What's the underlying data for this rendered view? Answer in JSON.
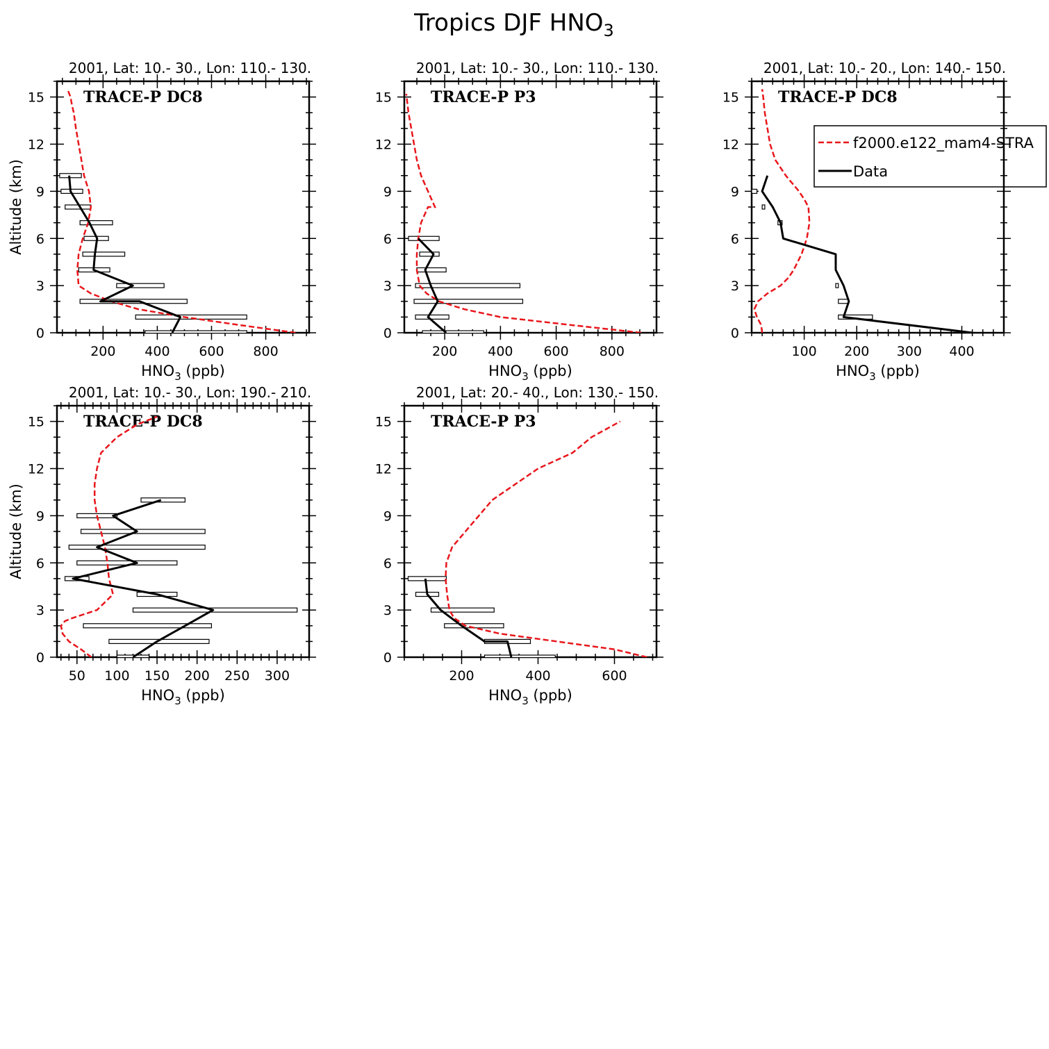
{
  "page": {
    "title": "Tropics DJF HNO",
    "title_sub": "3"
  },
  "legend": {
    "model_label": "f2000.e122_mam4-STRA",
    "data_label": "Data",
    "model_color": "#e8161b",
    "data_color": "#000000"
  },
  "chart_data": [
    {
      "type": "line",
      "subtitle": "2001, Lat: 10.- 30., Lon: 110.- 130.",
      "label": "TRACE-P DC8",
      "xlabel_main": "HNO",
      "xlabel_sub": "3",
      "xlabel_unit": " (ppb)",
      "ylabel": "Altitude (km)",
      "xlim": [
        30,
        960
      ],
      "ylim": [
        0,
        16
      ],
      "xticks": [
        200,
        400,
        600,
        800
      ],
      "xminor": 50,
      "yticks": [
        0,
        3,
        6,
        9,
        12,
        15
      ],
      "model": {
        "x": [
          910,
          700,
          500,
          330,
          230,
          155,
          110,
          105,
          110,
          125,
          145,
          155,
          148,
          130,
          120,
          110,
          100,
          92,
          85,
          80,
          73,
          70
        ],
        "y": [
          0,
          0.5,
          1,
          1.5,
          2,
          2.5,
          3,
          4,
          5,
          6,
          7,
          8,
          9,
          10,
          11,
          12,
          13,
          14,
          14.5,
          15,
          15.3,
          15.5
        ]
      },
      "data": {
        "x": [
          455,
          485,
          335,
          190,
          310,
          165,
          170,
          178,
          150,
          115,
          80,
          75
        ],
        "y": [
          0,
          1,
          2,
          2,
          3,
          4,
          5,
          6,
          7,
          8,
          9,
          10
        ]
      },
      "ranges": [
        {
          "y": 0,
          "lo": 355,
          "hi": 730
        },
        {
          "y": 1,
          "lo": 320,
          "hi": 730
        },
        {
          "y": 2,
          "lo": 115,
          "hi": 510
        },
        {
          "y": 3,
          "lo": 250,
          "hi": 425
        },
        {
          "y": 4,
          "lo": 110,
          "hi": 225
        },
        {
          "y": 5,
          "lo": 125,
          "hi": 280
        },
        {
          "y": 6,
          "lo": 130,
          "hi": 220
        },
        {
          "y": 7,
          "lo": 115,
          "hi": 235
        },
        {
          "y": 8,
          "lo": 60,
          "hi": 155
        },
        {
          "y": 9,
          "lo": 45,
          "hi": 125
        },
        {
          "y": 10,
          "lo": 40,
          "hi": 120
        }
      ]
    },
    {
      "type": "line",
      "subtitle": "2001, Lat: 10.- 30., Lon: 110.- 130.",
      "label": "TRACE-P P3",
      "xlabel_main": "HNO",
      "xlabel_sub": "3",
      "xlabel_unit": " (ppb)",
      "ylabel": "",
      "xlim": [
        55,
        960
      ],
      "ylim": [
        0,
        16
      ],
      "xticks": [
        200,
        400,
        600,
        800
      ],
      "xminor": 50,
      "yticks": [
        0,
        3,
        6,
        9,
        12,
        15
      ],
      "model": {
        "x": [
          905,
          650,
          400,
          270,
          180,
          135,
          110,
          100,
          100,
          105,
          115,
          140,
          165,
          140,
          115,
          100,
          90,
          80,
          70,
          62
        ],
        "y": [
          0,
          0.5,
          1,
          1.5,
          2,
          2.5,
          3,
          4,
          5,
          6,
          7,
          8,
          8,
          9,
          10,
          11,
          12,
          13,
          14,
          15.2
        ]
      },
      "data": {
        "x": [
          205,
          140,
          175,
          150,
          130,
          160,
          105
        ],
        "y": [
          0,
          1,
          2,
          3,
          4,
          5,
          6
        ]
      },
      "ranges": [
        {
          "y": 0,
          "lo": 120,
          "hi": 340
        },
        {
          "y": 1,
          "lo": 95,
          "hi": 215
        },
        {
          "y": 2,
          "lo": 90,
          "hi": 480
        },
        {
          "y": 3,
          "lo": 95,
          "hi": 470
        },
        {
          "y": 4,
          "lo": 100,
          "hi": 205
        },
        {
          "y": 5,
          "lo": 110,
          "hi": 180
        },
        {
          "y": 6,
          "lo": 70,
          "hi": 180
        }
      ]
    },
    {
      "type": "line",
      "subtitle": "2001, Lat: 10.- 20., Lon: 140.- 150.",
      "label": "TRACE-P DC8",
      "xlabel_main": "HNO",
      "xlabel_sub": "3",
      "xlabel_unit": " (ppb)",
      "ylabel": "",
      "xlim": [
        0,
        480
      ],
      "ylim": [
        0,
        16
      ],
      "xticks": [
        100,
        200,
        300,
        400
      ],
      "xminor": 20,
      "yticks": [
        0,
        3,
        6,
        9,
        12,
        15
      ],
      "model": {
        "x": [
          20,
          18,
          10,
          5,
          12,
          30,
          55,
          70,
          80,
          95,
          105,
          110,
          108,
          100,
          90,
          65,
          45,
          35,
          30,
          25,
          22,
          20
        ],
        "y": [
          0,
          0.5,
          1,
          1.5,
          2,
          2.5,
          3,
          3.5,
          4,
          5,
          6,
          7,
          8,
          8.5,
          9,
          10,
          11,
          12,
          13,
          14,
          15,
          15.5
        ]
      },
      "data": {
        "x": [
          420,
          175,
          175,
          185,
          185,
          175,
          160,
          160,
          60,
          55,
          40,
          20,
          30
        ],
        "y": [
          0,
          1,
          1,
          2,
          2,
          3,
          4,
          5,
          6,
          7,
          8,
          9,
          10
        ]
      },
      "ranges": [
        {
          "y": 1,
          "lo": 165,
          "hi": 230
        },
        {
          "y": 2,
          "lo": 165,
          "hi": 185
        },
        {
          "y": 3,
          "lo": 160,
          "hi": 165
        },
        {
          "y": 7,
          "lo": 50,
          "hi": 58
        },
        {
          "y": 8,
          "lo": 20,
          "hi": 25
        },
        {
          "y": 9,
          "lo": 0,
          "hi": 10
        }
      ]
    },
    {
      "type": "line",
      "subtitle": "2001, Lat: 10.- 30., Lon: 190.- 210.",
      "label": "TRACE-P DC8",
      "xlabel_main": "HNO",
      "xlabel_sub": "3",
      "xlabel_unit": " (ppb)",
      "ylabel": "Altitude (km)",
      "xlim": [
        25,
        340
      ],
      "ylim": [
        0,
        16
      ],
      "xticks": [
        50,
        100,
        150,
        200,
        250,
        300
      ],
      "xminor": 10,
      "yticks": [
        0,
        3,
        6,
        9,
        12,
        15
      ],
      "model": {
        "x": [
          68,
          55,
          40,
          32,
          30,
          35,
          45,
          75,
          95,
          90,
          88,
          85,
          80,
          75,
          72,
          72,
          75,
          80,
          100,
          125,
          150
        ],
        "y": [
          0,
          0.5,
          1,
          1.5,
          2,
          2.3,
          2.5,
          3,
          4,
          5,
          6,
          7,
          8,
          9,
          10,
          11,
          12,
          13,
          14,
          14.8,
          15.3
        ]
      },
      "data": {
        "x": [
          120,
          150,
          185,
          220,
          150,
          45,
          125,
          75,
          125,
          95,
          155
        ],
        "y": [
          0,
          1,
          2,
          3,
          4,
          5,
          6,
          7,
          8,
          9,
          10
        ]
      },
      "ranges": [
        {
          "y": 0,
          "lo": 100,
          "hi": 140
        },
        {
          "y": 1,
          "lo": 90,
          "hi": 215
        },
        {
          "y": 2,
          "lo": 58,
          "hi": 218
        },
        {
          "y": 3,
          "lo": 120,
          "hi": 325
        },
        {
          "y": 4,
          "lo": 125,
          "hi": 175
        },
        {
          "y": 5,
          "lo": 35,
          "hi": 65
        },
        {
          "y": 6,
          "lo": 50,
          "hi": 175
        },
        {
          "y": 7,
          "lo": 40,
          "hi": 210
        },
        {
          "y": 8,
          "lo": 55,
          "hi": 210
        },
        {
          "y": 9,
          "lo": 50,
          "hi": 100
        },
        {
          "y": 10,
          "lo": 130,
          "hi": 185
        }
      ]
    },
    {
      "type": "line",
      "subtitle": "2001, Lat: 20.- 40., Lon: 130.- 150.",
      "label": "TRACE-P P3",
      "xlabel_main": "HNO",
      "xlabel_sub": "3",
      "xlabel_unit": " (ppb)",
      "ylabel": "",
      "xlim": [
        50,
        710
      ],
      "ylim": [
        0,
        16
      ],
      "xticks": [
        200,
        400,
        600
      ],
      "xminor": 50,
      "yticks": [
        0,
        3,
        6,
        9,
        12,
        15
      ],
      "model": {
        "x": [
          685,
          600,
          450,
          300,
          210,
          180,
          168,
          162,
          158,
          160,
          175,
          210,
          280,
          400,
          490,
          540,
          615
        ],
        "y": [
          0,
          0.5,
          1,
          1.5,
          2,
          2.5,
          3,
          4,
          5,
          6,
          7,
          8,
          10,
          12,
          13,
          14,
          15
        ]
      },
      "data": {
        "x": [
          330,
          320,
          260,
          200,
          145,
          110,
          105
        ],
        "y": [
          0,
          1,
          1,
          2,
          3,
          4,
          5
        ]
      },
      "ranges": [
        {
          "y": 0,
          "lo": 260,
          "hi": 445
        },
        {
          "y": 1,
          "lo": 260,
          "hi": 380
        },
        {
          "y": 2,
          "lo": 155,
          "hi": 310
        },
        {
          "y": 3,
          "lo": 120,
          "hi": 285
        },
        {
          "y": 4,
          "lo": 80,
          "hi": 140
        },
        {
          "y": 5,
          "lo": 60,
          "hi": 160
        }
      ]
    }
  ]
}
